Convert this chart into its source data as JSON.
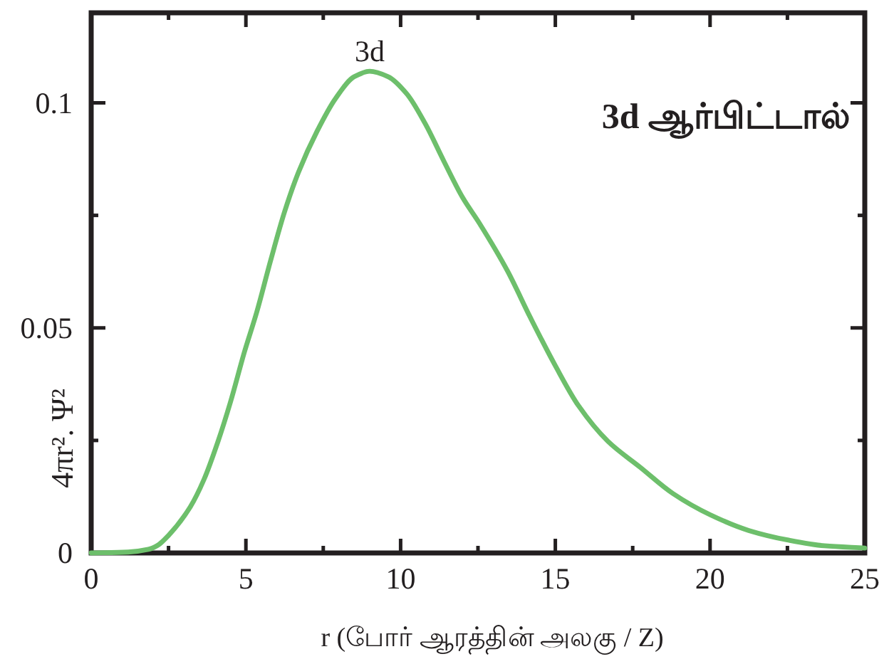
{
  "chart_data": {
    "type": "line",
    "title": "3d ஆர்பிட்டால்",
    "xlabel": "r (போர் ஆரத்தின் அலகு / Z)",
    "ylabel": "4πr². Ψ²",
    "annotations": [
      {
        "text": "3d",
        "x": 9,
        "y": 0.107
      }
    ],
    "x": [
      0,
      1.2,
      1.85,
      2.15,
      2.5,
      3.2,
      3.65,
      4.1,
      4.5,
      4.95,
      5.35,
      5.8,
      6.25,
      6.7,
      7.3,
      7.9,
      8.5,
      9.0,
      9.6,
      10.2,
      10.8,
      11.4,
      12.0,
      12.55,
      13.45,
      14.2,
      15.0,
      15.75,
      16.7,
      17.75,
      18.8,
      20.0,
      21.25,
      22.5,
      23.7,
      25.0
    ],
    "series": [
      {
        "color": "#6dbf6b",
        "values": [
          0,
          0.0002,
          0.0008,
          0.0017,
          0.0039,
          0.0102,
          0.0164,
          0.0248,
          0.0335,
          0.0446,
          0.0535,
          0.065,
          0.0758,
          0.0846,
          0.0937,
          0.101,
          0.1058,
          0.107,
          0.1058,
          0.102,
          0.0953,
          0.087,
          0.079,
          0.0732,
          0.0627,
          0.0522,
          0.0416,
          0.0327,
          0.0248,
          0.019,
          0.0132,
          0.0085,
          0.005,
          0.0029,
          0.0016,
          0.0011
        ]
      }
    ],
    "xlim": [
      0,
      25
    ],
    "ylim": [
      0,
      0.12
    ],
    "xticks": [
      0,
      {
        "value": 2.5,
        "label": null
      },
      5,
      {
        "value": 7.5,
        "label": null
      },
      10,
      {
        "value": 12.5,
        "label": null
      },
      15,
      {
        "value": 17.5,
        "label": null
      },
      20,
      {
        "value": 22.5,
        "label": null
      },
      25
    ],
    "yticks": [
      0,
      {
        "value": 0.025,
        "label": null
      },
      0.05,
      {
        "value": 0.075,
        "label": null
      },
      0.1
    ],
    "line_style": "solid"
  }
}
